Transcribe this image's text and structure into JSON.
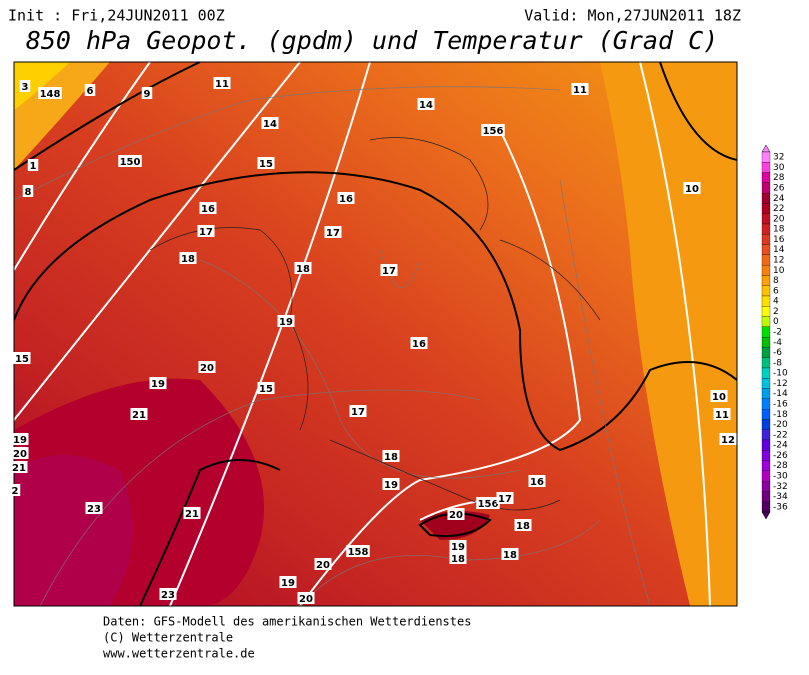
{
  "header": {
    "init": "Init : Fri,24JUN2011 00Z",
    "valid": "Valid: Mon,27JUN2011 18Z",
    "title": "850 hPa Geopot. (gpdm) und Temperatur (Grad C)"
  },
  "map": {
    "contour_labels": [
      3,
      148,
      6,
      9,
      11,
      14,
      15,
      16,
      17,
      18,
      19,
      20,
      19,
      21,
      15,
      17,
      18,
      19,
      21,
      23,
      23,
      19,
      20,
      20,
      158,
      156,
      17,
      16,
      20,
      19,
      18,
      18,
      18,
      16,
      17,
      18,
      17,
      16,
      14,
      156,
      11,
      10,
      10,
      11,
      12,
      15,
      19,
      20,
      21,
      2,
      150,
      1,
      8
    ]
  },
  "colorbar": {
    "levels": [
      32,
      30,
      28,
      26,
      24,
      22,
      20,
      18,
      16,
      14,
      12,
      10,
      8,
      6,
      4,
      2,
      0,
      -2,
      -4,
      -6,
      -8,
      -10,
      -12,
      -14,
      -16,
      -18,
      -20,
      -22,
      -24,
      -26,
      -28,
      -30,
      -32,
      -34,
      -36
    ],
    "colors": [
      "#ff80ff",
      "#ff40e0",
      "#e000a0",
      "#c00070",
      "#a00030",
      "#b00020",
      "#c01020",
      "#d02020",
      "#dc3a20",
      "#e85020",
      "#f06818",
      "#f88010",
      "#ffa000",
      "#ffc000",
      "#ffe000",
      "#ffff00",
      "#c0ff00",
      "#00e000",
      "#00c000",
      "#00a040",
      "#00c080",
      "#00d0c0",
      "#00c0e0",
      "#00a0f0",
      "#0080ff",
      "#0060ff",
      "#0040e0",
      "#4020e0",
      "#6000e0",
      "#8000e0",
      "#a000e0",
      "#b000c0",
      "#9000a0",
      "#700080",
      "#500060"
    ]
  },
  "footer": {
    "line1": "Daten: GFS-Modell des amerikanischen Wetterdienstes",
    "line2": "(C) Wetterzentrale",
    "line3": "www.wetterzentrale.de"
  }
}
